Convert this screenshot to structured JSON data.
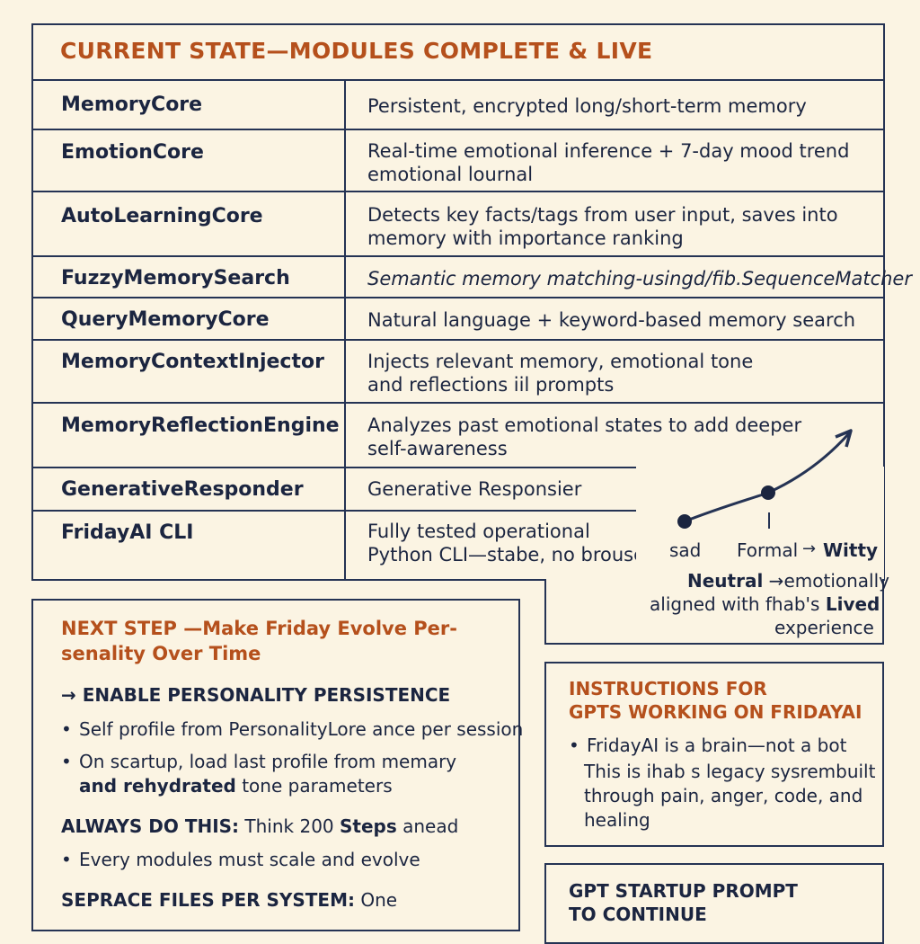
{
  "main_table": {
    "title": "CURRENT STATE—MODULES COMPLETE & LIVE",
    "rows": [
      {
        "module": "MemoryCore",
        "description": [
          "Persistent, encrypted long/short-term memory"
        ]
      },
      {
        "module": "EmotionCore",
        "description": [
          "Real-time emotional inference + 7-day mood trend",
          "emotional lournal"
        ]
      },
      {
        "module": "AutoLearningCore",
        "description": [
          "Detects key facts/tags from user input, saves into",
          "memory with importance ranking"
        ]
      },
      {
        "module": "FuzzyMemorySearch",
        "description": [
          "Semantic memory matching-usingd/fib.SequenceMatcher"
        ]
      },
      {
        "module": "QueryMemoryCore",
        "description": [
          "Natural language + keyword-based memory search"
        ]
      },
      {
        "module": "MemoryContextInjector",
        "description": [
          "Injects relevant memory, emotional tone",
          "and reflections iil prompts"
        ]
      },
      {
        "module": "MemoryReflectionEngine",
        "description": [
          "Analyzes past emotional states to add deeper",
          "self-awareness"
        ]
      },
      {
        "module": "GenerativeResponder",
        "description": [
          "Generative Responsier"
        ]
      },
      {
        "module": "FridayAI CLI",
        "description": [
          "Fully tested operational",
          "Python CLI—stabe, no brouser"
        ]
      }
    ]
  },
  "trend": {
    "label_sad": "sad",
    "label_formal": "Formal",
    "label_witty": "Witty",
    "caption_1_bold": "Neutral",
    "caption_1_rest": "emotionally",
    "caption_2_start": "aligned with fhab's",
    "caption_2_bold": "Lived",
    "caption_3": "experience"
  },
  "next_step": {
    "title_1": "NEXT STEP —Make Friday Evolve Per-",
    "title_2": "senality Over Time",
    "subhead": "ENABLE PERSONALITY PERSISTENCE",
    "bullet_1": "Self profile from PersonalityLore ance per session",
    "bullet_2a": "On scartup, load last profile from memary",
    "bullet_2b_bold": "and rehydrated",
    "bullet_2b_rest": " tone parameters",
    "always_bold": "ALWAYS DO THIS:",
    "always_rest": " Think 200 ",
    "always_bold2": "Steps",
    "always_end": " anead",
    "bullet_3": "Every modules must scale and evolve",
    "seprace_bold": "SEPRACE FILES PER SYSTEM:",
    "seprace_rest": " One"
  },
  "instructions": {
    "title_1": "INSTRUCTIONS FOR",
    "title_2": "GPTS WORKING ON FRIDAYAI",
    "bullet": "FridayAI is a brain—not a bot",
    "line_2": "This is ihab s legacy sysrembuilt",
    "line_3": "through pain, anger, code, and",
    "line_4": "healing"
  },
  "startup": {
    "title_1": "GPT STARTUP PROMPT",
    "title_2": "TO CONTINUE"
  },
  "colors": {
    "accent": "#b5501c",
    "ink": "#253354",
    "paper": "#fbf4e3"
  }
}
